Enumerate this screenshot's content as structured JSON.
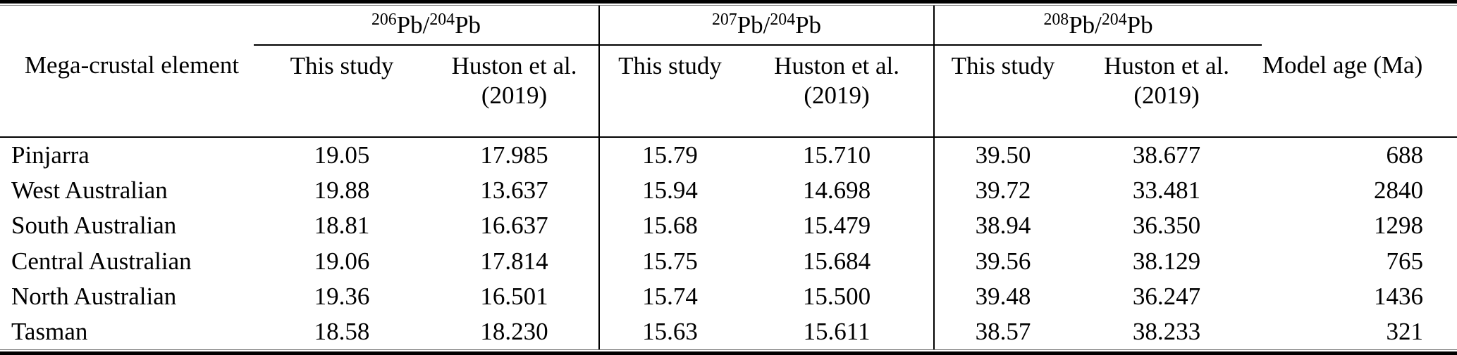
{
  "table": {
    "first_col_header": "Mega-crustal element",
    "last_col_header": "Model age (Ma)",
    "groups": [
      {
        "sup_a": "206",
        "mid": "Pb/",
        "sup_b": "204",
        "tail": "Pb"
      },
      {
        "sup_a": "207",
        "mid": "Pb/",
        "sup_b": "204",
        "tail": "Pb"
      },
      {
        "sup_a": "208",
        "mid": "Pb/",
        "sup_b": "204",
        "tail": "Pb"
      }
    ],
    "subheaders": {
      "this_study": "This study",
      "huston_line1": "Huston et al.",
      "huston_line2": "(2019)"
    },
    "rows": [
      {
        "name": "Pinjarra",
        "values": [
          "19.05",
          "17.985",
          "15.79",
          "15.710",
          "39.50",
          "38.677",
          "688"
        ]
      },
      {
        "name": "West Australian",
        "values": [
          "19.88",
          "13.637",
          "15.94",
          "14.698",
          "39.72",
          "33.481",
          "2840"
        ]
      },
      {
        "name": "South Australian",
        "values": [
          "18.81",
          "16.637",
          "15.68",
          "15.479",
          "38.94",
          "36.350",
          "1298"
        ]
      },
      {
        "name": "Central Australian",
        "values": [
          "19.06",
          "17.814",
          "15.75",
          "15.684",
          "39.56",
          "38.129",
          "765"
        ]
      },
      {
        "name": "North Australian",
        "values": [
          "19.36",
          "16.501",
          "15.74",
          "15.500",
          "39.48",
          "36.247",
          "1436"
        ]
      },
      {
        "name": "Tasman",
        "values": [
          "18.58",
          "18.230",
          "15.63",
          "15.611",
          "38.57",
          "38.233",
          "321"
        ]
      }
    ],
    "colors": {
      "text": "#000000",
      "rule": "#000000",
      "background": "#ffffff"
    }
  }
}
